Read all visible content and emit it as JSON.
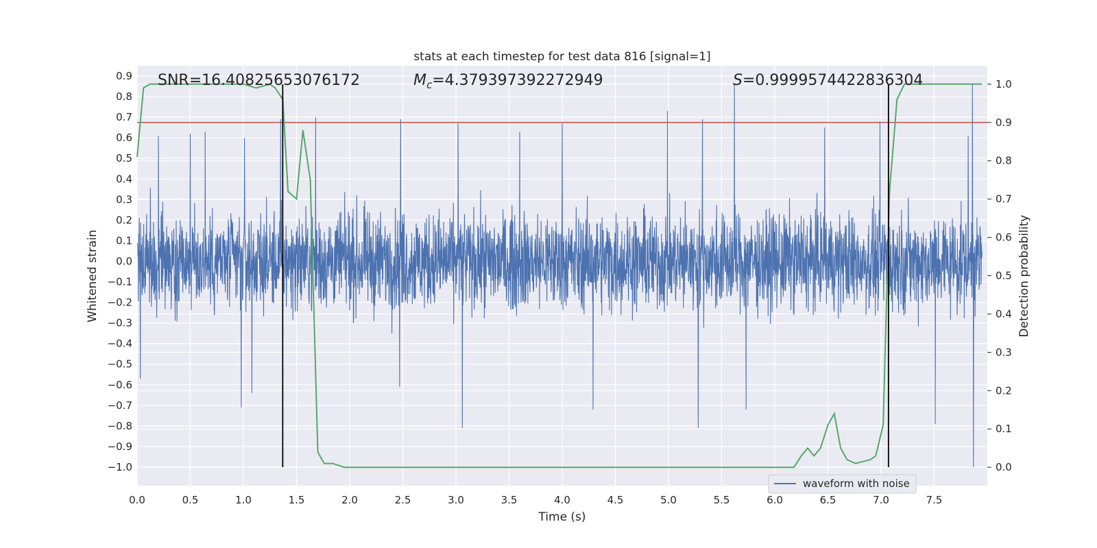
{
  "chart_data": {
    "type": "line",
    "title": "stats at each timestep for test data 816 [signal=1]",
    "xlabel": "Time (s)",
    "ylabel": "Whitened strain",
    "y2label": "Detection probability",
    "xlim": [
      0.0,
      8.0
    ],
    "ylim": [
      -1.09,
      0.95
    ],
    "y2lim": [
      -0.048,
      1.048
    ],
    "x_ticks": [
      "0.0",
      "0.5",
      "1.0",
      "1.5",
      "2.0",
      "2.5",
      "3.0",
      "3.5",
      "4.0",
      "4.5",
      "5.0",
      "5.5",
      "6.0",
      "6.5",
      "7.0",
      "7.5"
    ],
    "y_ticks": [
      "0.9",
      "0.8",
      "0.7",
      "0.6",
      "0.5",
      "0.4",
      "0.3",
      "0.2",
      "0.1",
      "0.0",
      "−0.1",
      "−0.2",
      "−0.3",
      "−0.4",
      "−0.5",
      "−0.6",
      "−0.7",
      "−0.8",
      "−0.9",
      "−1.0"
    ],
    "y2_ticks": [
      "1.0",
      "0.9",
      "0.8",
      "0.7",
      "0.6",
      "0.5",
      "0.4",
      "0.3",
      "0.2",
      "0.1",
      "0.0"
    ],
    "grid": true,
    "legend_position": "lower-right",
    "annotations": {
      "snr": "SNR=16.40825653076172",
      "mc_symbol": "M",
      "mc_sub": "c",
      "mc_value": "=4.379397392272949",
      "s_symbol": "S",
      "s_value": "=0.9999574422836304"
    },
    "threshold_line": {
      "axis": "y2",
      "value": 0.9,
      "color": "#c44e52"
    },
    "event_markers": {
      "x": [
        1.37,
        7.07
      ],
      "color": "#000000"
    },
    "series": [
      {
        "name": "waveform with noise",
        "axis": "y",
        "color": "#4c72b0",
        "envelope_note": "dense noise between about -0.45 and 0.45 with spikes",
        "spikes": [
          {
            "x": 0.03,
            "y": -0.57
          },
          {
            "x": 0.2,
            "y": 0.61
          },
          {
            "x": 0.5,
            "y": 0.62
          },
          {
            "x": 0.64,
            "y": 0.63
          },
          {
            "x": 0.98,
            "y": -0.71
          },
          {
            "x": 1.01,
            "y": 0.6
          },
          {
            "x": 1.08,
            "y": -0.64
          },
          {
            "x": 1.35,
            "y": 0.69
          },
          {
            "x": 1.68,
            "y": 0.7
          },
          {
            "x": 2.47,
            "y": -0.61
          },
          {
            "x": 2.48,
            "y": 0.69
          },
          {
            "x": 3.02,
            "y": 0.67
          },
          {
            "x": 3.06,
            "y": -0.81
          },
          {
            "x": 3.6,
            "y": 0.63
          },
          {
            "x": 4.0,
            "y": 0.67
          },
          {
            "x": 4.29,
            "y": -0.72
          },
          {
            "x": 4.99,
            "y": 0.73
          },
          {
            "x": 5.28,
            "y": -0.81
          },
          {
            "x": 5.32,
            "y": 0.69
          },
          {
            "x": 5.62,
            "y": 0.86
          },
          {
            "x": 5.73,
            "y": -0.72
          },
          {
            "x": 6.47,
            "y": 0.65
          },
          {
            "x": 6.99,
            "y": 0.68
          },
          {
            "x": 7.51,
            "y": -0.79
          },
          {
            "x": 7.82,
            "y": 0.61
          },
          {
            "x": 7.86,
            "y": 0.86
          },
          {
            "x": 7.87,
            "y": -1.0
          }
        ]
      },
      {
        "name": "",
        "axis": "y2",
        "color": "#55a868",
        "x": [
          0.0,
          0.06,
          0.12,
          0.3,
          0.6,
          0.9,
          1.0,
          1.12,
          1.25,
          1.3,
          1.37,
          1.42,
          1.5,
          1.56,
          1.63,
          1.7,
          1.76,
          1.84,
          1.95,
          2.15,
          2.3,
          2.5,
          3.0,
          3.5,
          3.8,
          3.9,
          4.05,
          4.2,
          5.0,
          5.5,
          6.0,
          6.18,
          6.25,
          6.31,
          6.37,
          6.43,
          6.5,
          6.56,
          6.62,
          6.68,
          6.76,
          6.9,
          6.95,
          7.02,
          7.08,
          7.15,
          7.22,
          7.3,
          7.5,
          7.8,
          7.95
        ],
        "y": [
          0.81,
          0.99,
          1.0,
          1.0,
          1.0,
          1.0,
          1.0,
          0.99,
          1.0,
          0.99,
          0.96,
          0.72,
          0.7,
          0.88,
          0.75,
          0.04,
          0.01,
          0.01,
          0.0,
          0.0,
          0.0,
          0.0,
          0.0,
          0.0,
          0.0,
          0.0,
          0.0,
          0.0,
          0.0,
          0.0,
          0.0,
          0.0,
          0.03,
          0.05,
          0.03,
          0.05,
          0.11,
          0.14,
          0.05,
          0.02,
          0.01,
          0.02,
          0.03,
          0.11,
          0.72,
          0.96,
          1.0,
          1.0,
          1.0,
          1.0,
          1.0
        ]
      }
    ]
  }
}
